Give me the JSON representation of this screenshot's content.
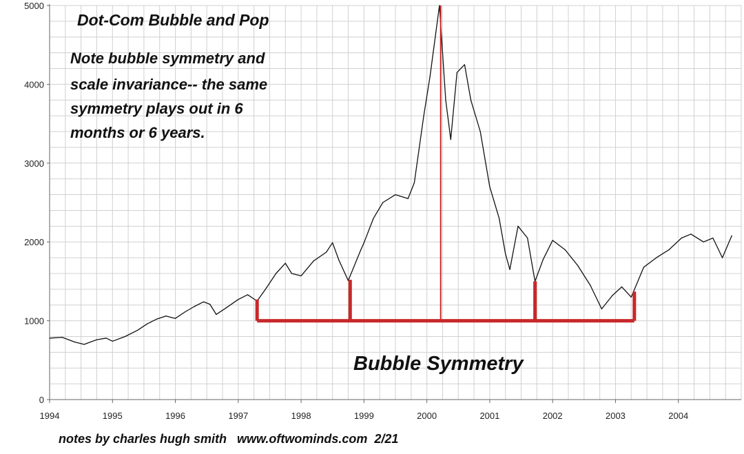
{
  "chart_data": {
    "type": "line",
    "title": "Dot-Com Bubble and Pop",
    "note": [
      "Note bubble symmetry and",
      "scale invariance-- the same",
      "symmetry plays out in 6",
      "months or 6 years."
    ],
    "annotation": "Bubble Symmetry",
    "footer": "notes by charles hugh smith   www.oftwominds.com  2/21",
    "xlim": [
      1994,
      2005
    ],
    "ylim": [
      0,
      5000
    ],
    "grid": true,
    "x_ticks": [
      "1994",
      "1995",
      "1996",
      "1997",
      "1998",
      "1999",
      "2000",
      "2001",
      "2002",
      "2003",
      "2004"
    ],
    "y_ticks": [
      "0",
      "1000",
      "2000",
      "3000",
      "4000",
      "5000"
    ],
    "series": [
      {
        "color": "#111111",
        "x": [
          1994.0,
          1994.2,
          1994.4,
          1994.55,
          1994.75,
          1994.9,
          1995.0,
          1995.2,
          1995.4,
          1995.55,
          1995.7,
          1995.85,
          1996.0,
          1996.15,
          1996.3,
          1996.45,
          1996.55,
          1996.65,
          1996.8,
          1997.0,
          1997.15,
          1997.3,
          1997.45,
          1997.6,
          1997.75,
          1997.85,
          1998.0,
          1998.2,
          1998.4,
          1998.5,
          1998.6,
          1998.75,
          1998.95,
          1999.0,
          1999.15,
          1999.3,
          1999.5,
          1999.7,
          1999.8,
          1999.95,
          2000.05,
          2000.2,
          2000.3,
          2000.38,
          2000.48,
          2000.6,
          2000.7,
          2000.85,
          2001.0,
          2001.15,
          2001.25,
          2001.32,
          2001.45,
          2001.6,
          2001.72,
          2001.85,
          2002.0,
          2002.2,
          2002.4,
          2002.6,
          2002.78,
          2002.95,
          2003.1,
          2003.25,
          2003.45,
          2003.65,
          2003.85,
          2004.05,
          2004.2,
          2004.4,
          2004.55,
          2004.7,
          2004.85
        ],
        "y": [
          780,
          790,
          730,
          700,
          760,
          780,
          740,
          800,
          880,
          960,
          1020,
          1060,
          1030,
          1110,
          1180,
          1240,
          1210,
          1080,
          1160,
          1270,
          1330,
          1250,
          1420,
          1600,
          1730,
          1600,
          1570,
          1760,
          1870,
          1990,
          1770,
          1510,
          1900,
          1990,
          2300,
          2500,
          2600,
          2550,
          2750,
          3600,
          4100,
          5000,
          3800,
          3300,
          4150,
          4250,
          3800,
          3400,
          2700,
          2300,
          1850,
          1650,
          2200,
          2050,
          1500,
          1780,
          2020,
          1900,
          1700,
          1450,
          1150,
          1320,
          1430,
          1300,
          1680,
          1800,
          1900,
          2050,
          2100,
          2000,
          2050,
          1800,
          2080
        ]
      }
    ],
    "overlays": [
      {
        "kind": "vertical-line",
        "x": 2000.22,
        "y": [
          1000,
          5000
        ],
        "color": "#c8282a"
      },
      {
        "kind": "symmetry-bracket",
        "y": 1000,
        "x_range": [
          1997.3,
          2003.3
        ],
        "color": "#c8282a"
      },
      {
        "kind": "bracket-leg",
        "x": 1997.3,
        "y": [
          1000,
          1270
        ],
        "color": "#c8282a"
      },
      {
        "kind": "bracket-leg",
        "x": 1998.78,
        "y": [
          1000,
          1520
        ],
        "color": "#c8282a"
      },
      {
        "kind": "bracket-leg",
        "x": 2001.72,
        "y": [
          1000,
          1500
        ],
        "color": "#c8282a"
      },
      {
        "kind": "bracket-leg",
        "x": 2003.3,
        "y": [
          1000,
          1370
        ],
        "color": "#c8282a"
      }
    ]
  }
}
